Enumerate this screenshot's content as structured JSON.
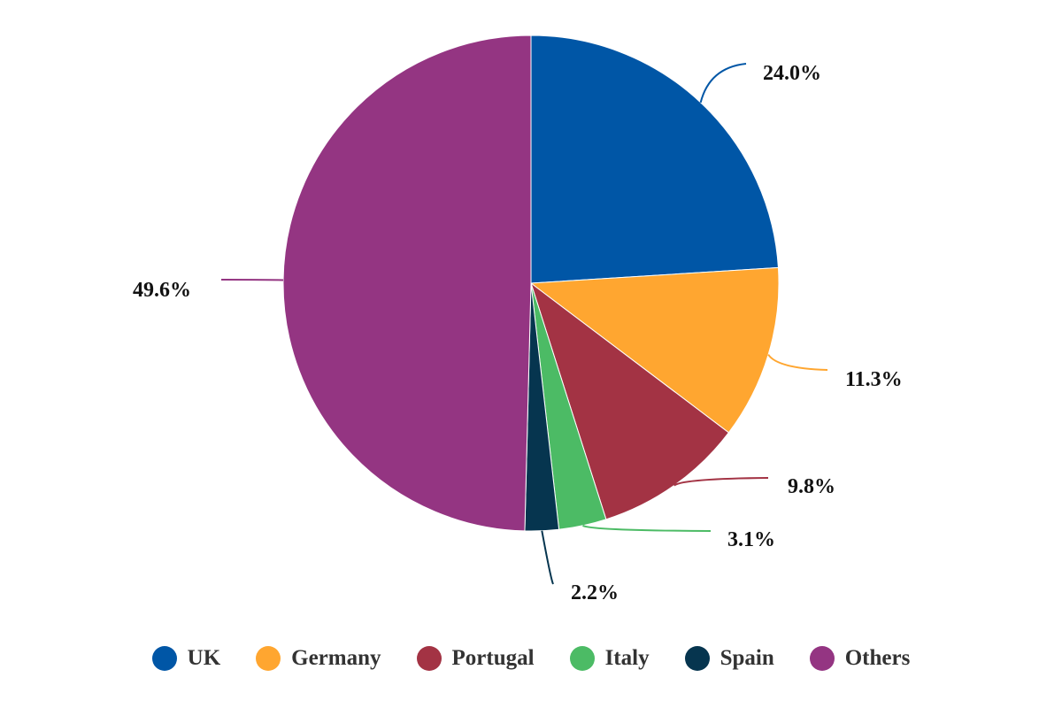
{
  "chart_data": {
    "type": "pie",
    "title": "",
    "legend_position": "bottom",
    "slices": [
      {
        "name": "UK",
        "value": 24.0,
        "label": "24.0%",
        "color": "#0056A6"
      },
      {
        "name": "Germany",
        "value": 11.3,
        "label": "11.3%",
        "color": "#FFA630"
      },
      {
        "name": "Portugal",
        "value": 9.8,
        "label": "9.8%",
        "color": "#A33344"
      },
      {
        "name": "Italy",
        "value": 3.1,
        "label": "3.1%",
        "color": "#4CBB65"
      },
      {
        "name": "Spain",
        "value": 2.2,
        "label": "2.2%",
        "color": "#06354F"
      },
      {
        "name": "Others",
        "value": 49.6,
        "label": "49.6%",
        "color": "#943582"
      }
    ]
  }
}
